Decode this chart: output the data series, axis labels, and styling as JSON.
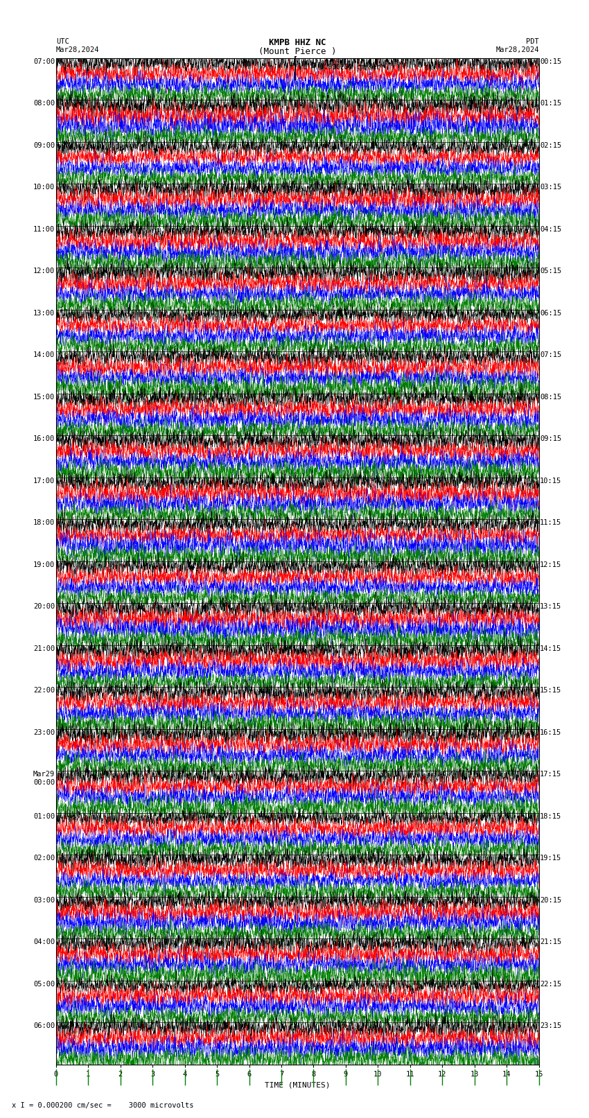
{
  "title_line1": "KMPB HHZ NC",
  "title_line2": "(Mount Pierce )",
  "scale_text": "I = 0.000200 cm/sec",
  "left_date": "Mar28,2024",
  "right_date": "Mar28,2024",
  "left_label": "UTC",
  "right_label": "PDT",
  "xlabel": "TIME (MINUTES)",
  "bottom_label": "x I = 0.000200 cm/sec =    3000 microvolts",
  "left_times_utc": [
    "07:00",
    "08:00",
    "09:00",
    "10:00",
    "11:00",
    "12:00",
    "13:00",
    "14:00",
    "15:00",
    "16:00",
    "17:00",
    "18:00",
    "19:00",
    "20:00",
    "21:00",
    "22:00",
    "23:00",
    "Mar29\n00:00",
    "01:00",
    "02:00",
    "03:00",
    "04:00",
    "05:00",
    "06:00"
  ],
  "right_times_pdt": [
    "00:15",
    "01:15",
    "02:15",
    "03:15",
    "04:15",
    "05:15",
    "06:15",
    "07:15",
    "08:15",
    "09:15",
    "10:15",
    "11:15",
    "12:15",
    "13:15",
    "14:15",
    "15:15",
    "16:15",
    "17:15",
    "18:15",
    "19:15",
    "20:15",
    "21:15",
    "22:15",
    "23:15"
  ],
  "n_hours": 24,
  "traces_per_hour": 4,
  "trace_duration_min": 15,
  "samples_per_trace": 4000,
  "colors": [
    "black",
    "red",
    "blue",
    "green"
  ],
  "bg_color": "white",
  "plot_bg": "white",
  "xlim": [
    0,
    15
  ],
  "xticks": [
    0,
    1,
    2,
    3,
    4,
    5,
    6,
    7,
    8,
    9,
    10,
    11,
    12,
    13,
    14,
    15
  ],
  "amplitude_scale": 0.45,
  "font": "monospace",
  "title_fontsize": 9,
  "tick_fontsize": 7.5,
  "label_fontsize": 8
}
